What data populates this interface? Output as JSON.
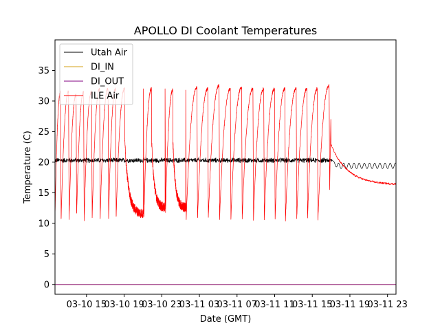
{
  "chart_data": {
    "type": "line",
    "title": "APOLLO DI Coolant Temperatures",
    "xlabel": "Date (GMT)",
    "ylabel": "Temperature (C)",
    "x_unit": "hours since 03-10 00:00 GMT",
    "xlim": [
      11.65,
      47.9
    ],
    "ylim": [
      -1.6,
      40.0
    ],
    "grid": false,
    "legend_position": "top-left",
    "x_ticks": [
      {
        "value": 15,
        "label": "03-10 15"
      },
      {
        "value": 19,
        "label": "03-10 19"
      },
      {
        "value": 23,
        "label": "03-10 23"
      },
      {
        "value": 27,
        "label": "03-11 03"
      },
      {
        "value": 31,
        "label": "03-11 07"
      },
      {
        "value": 35,
        "label": "03-11 11"
      },
      {
        "value": 39,
        "label": "03-11 15"
      },
      {
        "value": 43,
        "label": "03-11 19"
      },
      {
        "value": 47,
        "label": "03-11 23"
      }
    ],
    "y_ticks": [
      {
        "value": 0,
        "label": "0"
      },
      {
        "value": 5,
        "label": "5"
      },
      {
        "value": 10,
        "label": "10"
      },
      {
        "value": 15,
        "label": "15"
      },
      {
        "value": 20,
        "label": "20"
      },
      {
        "value": 25,
        "label": "25"
      },
      {
        "value": 30,
        "label": "30"
      },
      {
        "value": 35,
        "label": "35"
      }
    ],
    "series": [
      {
        "name": "Utah Air",
        "color": "#000000",
        "kind": "noisy-flat",
        "x_start": 11.65,
        "x_end": 41.1,
        "level": 20.3,
        "noise": 0.45,
        "tail": {
          "x_start": 41.1,
          "x_end": 47.9,
          "level": 19.4,
          "amplitude": 0.45,
          "period_hours": 0.55
        }
      },
      {
        "name": "DI_IN",
        "color": "#d4a017",
        "kind": "constant",
        "x_start": 11.65,
        "x_end": 47.9,
        "level": 0.0
      },
      {
        "name": "DI_OUT",
        "color": "#800080",
        "kind": "constant",
        "x_start": 11.65,
        "x_end": 47.9,
        "level": 0.0
      },
      {
        "name": "ILE Air",
        "color": "#ff0000",
        "kind": "cyclic",
        "cycles": [
          {
            "start": 11.65,
            "end": 12.3,
            "min": 11.0,
            "peak": 31.5,
            "settle": null
          },
          {
            "start": 12.3,
            "end": 13.15,
            "min": 10.5,
            "peak": 31.5,
            "settle": null
          },
          {
            "start": 13.15,
            "end": 13.95,
            "min": 10.7,
            "peak": 31.0,
            "settle": null
          },
          {
            "start": 13.95,
            "end": 14.75,
            "min": 11.4,
            "peak": 31.5,
            "settle": null
          },
          {
            "start": 14.75,
            "end": 15.6,
            "min": 10.6,
            "peak": 31.5,
            "settle": null
          },
          {
            "start": 15.6,
            "end": 16.45,
            "min": 10.9,
            "peak": 32.0,
            "settle": null
          },
          {
            "start": 16.45,
            "end": 17.35,
            "min": 10.7,
            "peak": 32.0,
            "settle": null
          },
          {
            "start": 17.35,
            "end": 18.15,
            "min": 10.9,
            "peak": 32.0,
            "settle": null
          },
          {
            "start": 18.15,
            "end": 21.1,
            "min": 10.9,
            "peak": 32.0,
            "settle": 11.5
          },
          {
            "start": 21.1,
            "end": 23.4,
            "min": 11.3,
            "peak": 32.0,
            "settle": 12.5
          },
          {
            "start": 23.4,
            "end": 25.6,
            "min": 12.0,
            "peak": 31.8,
            "settle": 12.5
          },
          {
            "start": 25.6,
            "end": 26.8,
            "min": 10.8,
            "peak": 32.2,
            "settle": null
          },
          {
            "start": 26.8,
            "end": 27.95,
            "min": 10.7,
            "peak": 32.0,
            "settle": null
          },
          {
            "start": 27.95,
            "end": 29.15,
            "min": 10.9,
            "peak": 32.5,
            "settle": null
          },
          {
            "start": 29.15,
            "end": 30.35,
            "min": 10.8,
            "peak": 32.0,
            "settle": null
          },
          {
            "start": 30.35,
            "end": 31.55,
            "min": 10.6,
            "peak": 32.2,
            "settle": null
          },
          {
            "start": 31.55,
            "end": 32.75,
            "min": 10.8,
            "peak": 32.0,
            "settle": null
          },
          {
            "start": 32.75,
            "end": 33.9,
            "min": 10.6,
            "peak": 32.0,
            "settle": null
          },
          {
            "start": 33.9,
            "end": 35.05,
            "min": 10.8,
            "peak": 32.0,
            "settle": null
          },
          {
            "start": 35.05,
            "end": 36.15,
            "min": 10.7,
            "peak": 32.0,
            "settle": null
          },
          {
            "start": 36.15,
            "end": 37.35,
            "min": 10.5,
            "peak": 32.0,
            "settle": null
          },
          {
            "start": 37.35,
            "end": 38.5,
            "min": 10.7,
            "peak": 32.0,
            "settle": null
          },
          {
            "start": 38.5,
            "end": 39.6,
            "min": 10.9,
            "peak": 32.0,
            "settle": null
          },
          {
            "start": 39.6,
            "end": 40.85,
            "min": 10.5,
            "peak": 32.5,
            "settle": null
          }
        ],
        "tail": {
          "x_start": 40.85,
          "x_end": 47.9,
          "start": 15.5,
          "peak": 27.0,
          "settle": 16.3
        }
      }
    ]
  }
}
